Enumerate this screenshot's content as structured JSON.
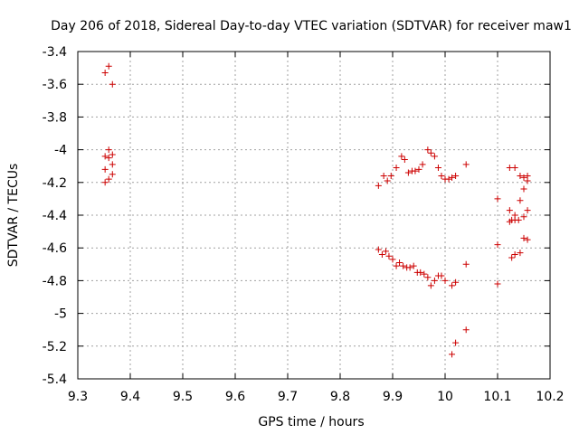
{
  "chart_data": {
    "type": "scatter",
    "title": "Day 206 of 2018, Sidereal Day-to-day VTEC variation (SDTVAR) for receiver maw1",
    "xlabel": "GPS time / hours",
    "ylabel": "SDTVAR / TECUs",
    "xlim": [
      9.3,
      10.2
    ],
    "ylim": [
      -5.4,
      -3.4
    ],
    "xticks": [
      9.3,
      9.4,
      9.5,
      9.6,
      9.7,
      9.8,
      9.9,
      10.0,
      10.1,
      10.2
    ],
    "xtick_labels": [
      "9.3",
      "9.4",
      "9.5",
      "9.6",
      "9.7",
      "9.8",
      "9.9",
      "10",
      "10.1",
      "10.2"
    ],
    "yticks": [
      -3.4,
      -3.6,
      -3.8,
      -4.0,
      -4.2,
      -4.4,
      -4.6,
      -4.8,
      -5.0,
      -5.2,
      -5.4
    ],
    "ytick_labels": [
      "-3.4",
      "-3.6",
      "-3.8",
      "-4",
      "-4.2",
      "-4.4",
      "-4.6",
      "-4.8",
      "-5",
      "-5.2",
      "-5.4"
    ],
    "grid": true,
    "marker": "+",
    "color": "#cc0000",
    "series": [
      {
        "name": "SDTVAR",
        "points": [
          [
            9.352,
            -3.53
          ],
          [
            9.359,
            -3.49
          ],
          [
            9.366,
            -3.6
          ],
          [
            9.352,
            -4.04
          ],
          [
            9.359,
            -4.0
          ],
          [
            9.366,
            -4.03
          ],
          [
            9.359,
            -4.05
          ],
          [
            9.366,
            -4.09
          ],
          [
            9.352,
            -4.12
          ],
          [
            9.366,
            -4.15
          ],
          [
            9.359,
            -4.18
          ],
          [
            9.352,
            -4.2
          ],
          [
            9.873,
            -4.22
          ],
          [
            9.883,
            -4.16
          ],
          [
            9.89,
            -4.19
          ],
          [
            9.897,
            -4.16
          ],
          [
            9.907,
            -4.11
          ],
          [
            9.917,
            -4.04
          ],
          [
            9.923,
            -4.06
          ],
          [
            9.93,
            -4.14
          ],
          [
            9.937,
            -4.13
          ],
          [
            9.943,
            -4.13
          ],
          [
            9.95,
            -4.12
          ],
          [
            9.957,
            -4.09
          ],
          [
            9.967,
            -4.0
          ],
          [
            9.973,
            -4.02
          ],
          [
            9.98,
            -4.04
          ],
          [
            9.987,
            -4.11
          ],
          [
            9.993,
            -4.16
          ],
          [
            10.0,
            -4.18
          ],
          [
            10.007,
            -4.18
          ],
          [
            10.013,
            -4.17
          ],
          [
            10.02,
            -4.16
          ],
          [
            10.04,
            -4.09
          ],
          [
            9.873,
            -4.61
          ],
          [
            9.88,
            -4.64
          ],
          [
            9.887,
            -4.62
          ],
          [
            9.893,
            -4.65
          ],
          [
            9.9,
            -4.67
          ],
          [
            9.907,
            -4.71
          ],
          [
            9.913,
            -4.69
          ],
          [
            9.92,
            -4.71
          ],
          [
            9.927,
            -4.72
          ],
          [
            9.933,
            -4.72
          ],
          [
            9.94,
            -4.71
          ],
          [
            9.947,
            -4.75
          ],
          [
            9.953,
            -4.75
          ],
          [
            9.96,
            -4.76
          ],
          [
            9.967,
            -4.78
          ],
          [
            9.973,
            -4.83
          ],
          [
            9.98,
            -4.8
          ],
          [
            9.987,
            -4.77
          ],
          [
            9.993,
            -4.77
          ],
          [
            10.0,
            -4.8
          ],
          [
            10.013,
            -4.83
          ],
          [
            10.02,
            -4.81
          ],
          [
            10.04,
            -4.7
          ],
          [
            10.04,
            -5.1
          ],
          [
            10.02,
            -5.18
          ],
          [
            10.013,
            -5.25
          ],
          [
            10.1,
            -4.3
          ],
          [
            10.1,
            -4.58
          ],
          [
            10.1,
            -4.82
          ],
          [
            10.123,
            -4.11
          ],
          [
            10.133,
            -4.11
          ],
          [
            10.143,
            -4.16
          ],
          [
            10.15,
            -4.17
          ],
          [
            10.157,
            -4.19
          ],
          [
            10.157,
            -4.16
          ],
          [
            10.15,
            -4.24
          ],
          [
            10.143,
            -4.31
          ],
          [
            10.123,
            -4.37
          ],
          [
            10.133,
            -4.4
          ],
          [
            10.157,
            -4.37
          ],
          [
            10.15,
            -4.41
          ],
          [
            10.14,
            -4.43
          ],
          [
            10.127,
            -4.43
          ],
          [
            10.133,
            -4.43
          ],
          [
            10.123,
            -4.44
          ],
          [
            10.15,
            -4.54
          ],
          [
            10.157,
            -4.55
          ],
          [
            10.143,
            -4.63
          ],
          [
            10.133,
            -4.64
          ],
          [
            10.127,
            -4.66
          ]
        ]
      }
    ]
  }
}
